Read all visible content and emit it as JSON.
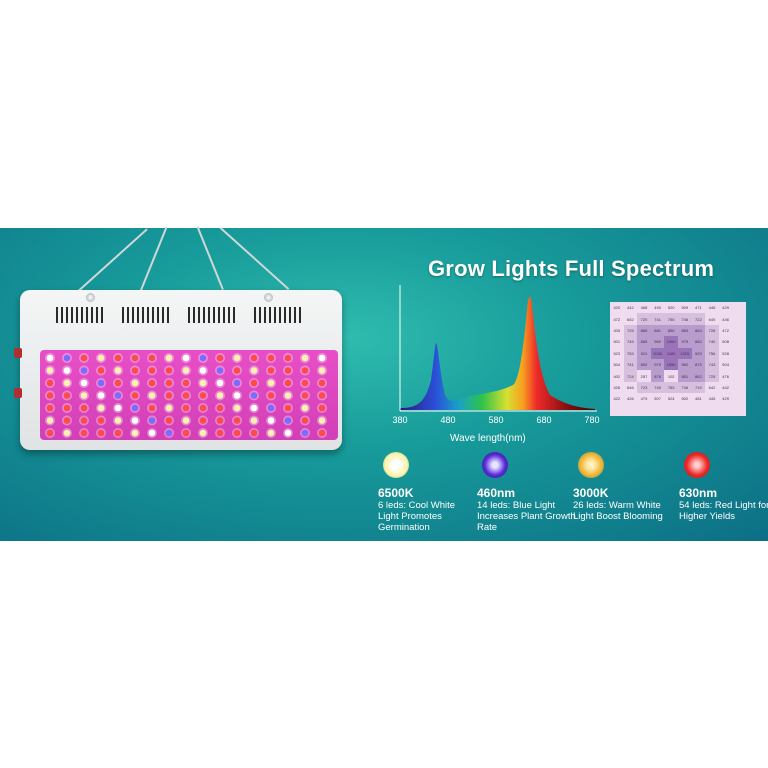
{
  "title": "Grow Lights Full Spectrum",
  "spectrum": {
    "x_ticks": [
      "380",
      "480",
      "580",
      "680",
      "780"
    ],
    "xlabel": "Wave length(nm)"
  },
  "ppfd_grid": [
    [
      "420",
      "442",
      "468",
      "490",
      "520",
      "509",
      "471",
      "446",
      "429",
      ""
    ],
    [
      "472",
      "652",
      "720",
      "741",
      "750",
      "746",
      "722",
      "649",
      "446",
      ""
    ],
    [
      "405",
      "725",
      "860",
      "881",
      "850",
      "883",
      "863",
      "728",
      "472",
      ""
    ],
    [
      "501",
      "745",
      "885",
      "960",
      "1060",
      "975",
      "882",
      "740",
      "508",
      ""
    ],
    [
      "523",
      "753",
      "921",
      "1040",
      "1180",
      "1020",
      "929",
      "756",
      "528",
      ""
    ],
    [
      "504",
      "741",
      "892",
      "979",
      "1050",
      "962",
      "879",
      "743",
      "504",
      ""
    ],
    [
      "402",
      "724",
      "257",
      "876",
      "102",
      "851",
      "862",
      "725",
      "476",
      ""
    ],
    [
      "426",
      "646",
      "723",
      "749",
      "763",
      "746",
      "719",
      "642",
      "442",
      ""
    ],
    [
      "422",
      "426",
      "479",
      "507",
      "524",
      "502",
      "481",
      "445",
      "429",
      ""
    ],
    [
      "",
      "",
      "",
      "",
      "",
      "",
      "",
      "",
      "",
      ""
    ]
  ],
  "leds": [
    {
      "head": "6500K",
      "desc": "6 leds: Cool White Light Promotes Germination",
      "color": "#fff6c8"
    },
    {
      "head": "460nm",
      "desc": "14 leds: Blue Light Increases Plant Growth Rate",
      "color": "#5a2bd8"
    },
    {
      "head": "3000K",
      "desc": "26 leds: Warm White Light Boost Blooming",
      "color": "#f7b733"
    },
    {
      "head": "630nm",
      "desc": "54 leds: Red Light for Higher Yields",
      "color": "#ef2a2a"
    }
  ]
}
